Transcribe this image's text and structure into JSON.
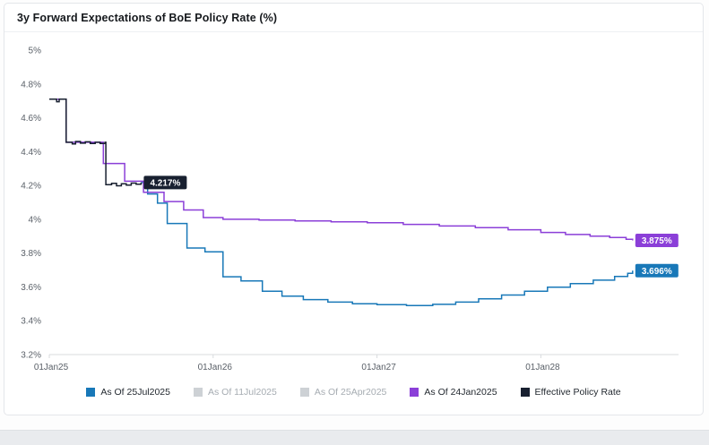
{
  "header": {
    "title": "3y Forward Expectations of BoE Policy Rate (%)"
  },
  "theme": {
    "axis_text": "#5a6068",
    "axis_line": "#d8dbde",
    "legend_text": "#232930",
    "legend_text_disabled": "#a6acb2",
    "badge_text": "#ffffff",
    "card_border": "#e4e6ea",
    "footer_bar": "#e9ebee"
  },
  "chart_data": {
    "type": "line",
    "title": "3y Forward Expectations of BoE Policy Rate (%)",
    "grid": false,
    "legend_position": "bottom",
    "x_axis": {
      "range_years": [
        0,
        3.84
      ],
      "ticks": [
        {
          "label": "01Jan25",
          "year": 0
        },
        {
          "label": "01Jan26",
          "year": 1
        },
        {
          "label": "01Jan27",
          "year": 2
        },
        {
          "label": "01Jan28",
          "year": 3
        }
      ]
    },
    "y_axis": {
      "range": [
        3.2,
        5.0
      ],
      "ticks": [
        {
          "label": "5%",
          "value": 5.0
        },
        {
          "label": "4.8%",
          "value": 4.8
        },
        {
          "label": "4.6%",
          "value": 4.6
        },
        {
          "label": "4.4%",
          "value": 4.4
        },
        {
          "label": "4.2%",
          "value": 4.2
        },
        {
          "label": "4%",
          "value": 4.0
        },
        {
          "label": "3.8%",
          "value": 3.8
        },
        {
          "label": "3.6%",
          "value": 3.6
        },
        {
          "label": "3.4%",
          "value": 3.4
        },
        {
          "label": "3.2%",
          "value": 3.2
        }
      ]
    },
    "series": [
      {
        "name": "As Of 25Jul2025",
        "color": "#1878b8",
        "visible": true,
        "end_label": "3.696%",
        "points": [
          [
            0.56,
            4.217
          ],
          [
            0.6,
            4.15
          ],
          [
            0.66,
            4.095
          ],
          [
            0.72,
            3.975
          ],
          [
            0.84,
            3.83
          ],
          [
            0.95,
            3.808
          ],
          [
            1.06,
            3.66
          ],
          [
            1.17,
            3.635
          ],
          [
            1.3,
            3.575
          ],
          [
            1.42,
            3.545
          ],
          [
            1.55,
            3.525
          ],
          [
            1.7,
            3.51
          ],
          [
            1.85,
            3.5
          ],
          [
            2.0,
            3.495
          ],
          [
            2.18,
            3.49
          ],
          [
            2.34,
            3.497
          ],
          [
            2.48,
            3.51
          ],
          [
            2.62,
            3.53
          ],
          [
            2.76,
            3.552
          ],
          [
            2.9,
            3.575
          ],
          [
            3.04,
            3.598
          ],
          [
            3.18,
            3.62
          ],
          [
            3.32,
            3.64
          ],
          [
            3.45,
            3.662
          ],
          [
            3.53,
            3.68
          ],
          [
            3.56,
            3.696
          ]
        ]
      },
      {
        "name": "As Of 11Jul2025",
        "color": "#cdd1d5",
        "visible": false,
        "points": []
      },
      {
        "name": "As Of 25Apr2025",
        "color": "#cdd1d5",
        "visible": false,
        "points": []
      },
      {
        "name": "As Of 24Jan2025",
        "color": "#8b3fd8",
        "visible": true,
        "end_label": "3.875%",
        "points": [
          [
            0.05,
            4.71
          ],
          [
            0.103,
            4.455
          ],
          [
            0.33,
            4.33
          ],
          [
            0.46,
            4.225
          ],
          [
            0.575,
            4.16
          ],
          [
            0.7,
            4.105
          ],
          [
            0.82,
            4.055
          ],
          [
            0.94,
            4.01
          ],
          [
            1.06,
            4.0
          ],
          [
            1.28,
            3.995
          ],
          [
            1.5,
            3.99
          ],
          [
            1.72,
            3.985
          ],
          [
            1.94,
            3.98
          ],
          [
            2.16,
            3.97
          ],
          [
            2.38,
            3.96
          ],
          [
            2.6,
            3.95
          ],
          [
            2.8,
            3.938
          ],
          [
            3.0,
            3.922
          ],
          [
            3.15,
            3.91
          ],
          [
            3.3,
            3.9
          ],
          [
            3.42,
            3.892
          ],
          [
            3.52,
            3.882
          ],
          [
            3.56,
            3.875
          ]
        ]
      },
      {
        "name": "Effective Policy Rate",
        "color": "#182030",
        "visible": true,
        "end_label": "4.217%",
        "points": [
          [
            0.0,
            4.71
          ],
          [
            0.045,
            4.695
          ],
          [
            0.06,
            4.71
          ],
          [
            0.103,
            4.455
          ],
          [
            0.14,
            4.445
          ],
          [
            0.16,
            4.46
          ],
          [
            0.19,
            4.45
          ],
          [
            0.22,
            4.458
          ],
          [
            0.25,
            4.448
          ],
          [
            0.28,
            4.455
          ],
          [
            0.31,
            4.448
          ],
          [
            0.34,
            4.455
          ],
          [
            0.345,
            4.205
          ],
          [
            0.38,
            4.212
          ],
          [
            0.41,
            4.198
          ],
          [
            0.44,
            4.21
          ],
          [
            0.47,
            4.202
          ],
          [
            0.5,
            4.214
          ],
          [
            0.53,
            4.207
          ],
          [
            0.56,
            4.217
          ]
        ]
      }
    ]
  }
}
